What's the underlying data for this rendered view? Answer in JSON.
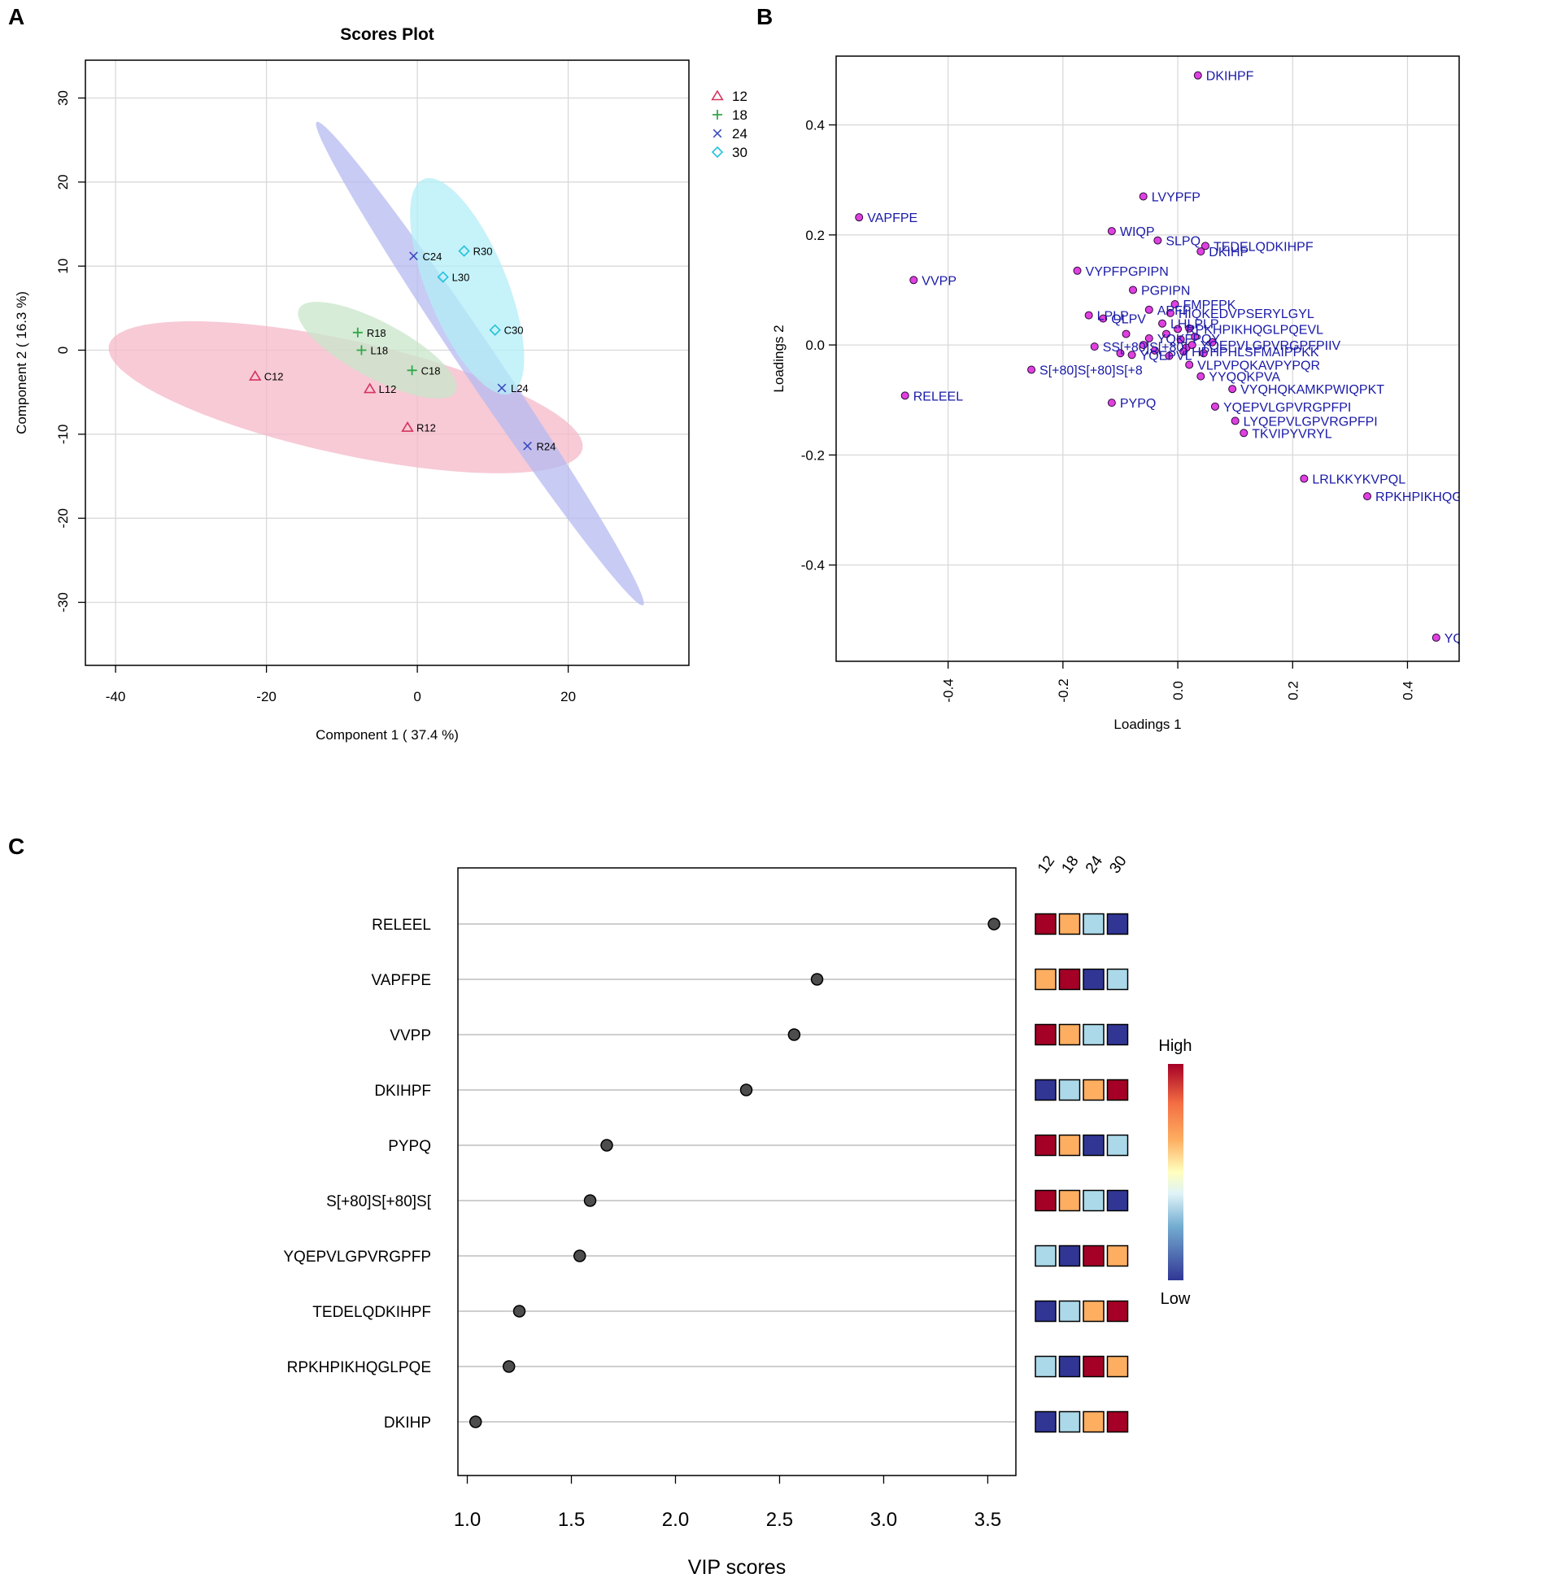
{
  "figure": {
    "panel_a_letter": "A",
    "panel_b_letter": "B",
    "panel_c_letter": "C"
  },
  "colors": {
    "g12": "#d6335e",
    "g18": "#2fa84a",
    "g24": "#3b4cc0",
    "g30": "#22c1dc",
    "ell12": "#f4b8c8",
    "ell18": "#c8e6c9",
    "ell24": "#b5baf0",
    "ell30": "#b3eef7",
    "loading_point": "#e040e0",
    "loading_text": "#1a1aa8",
    "grid": "#d9d9d9",
    "heat_low": "#313695",
    "heat_lowmid": "#abd9e9",
    "heat_mid": "#ffffbf",
    "heat_highmid": "#fdae61",
    "heat_high": "#a50026"
  },
  "chart_data": [
    {
      "id": "scores",
      "type": "scatter",
      "title": "Scores Plot",
      "xlabel": "Component 1 ( 37.4 %)",
      "ylabel": "Component 2 ( 16.3 %)",
      "xlim": [
        -44,
        36
      ],
      "ylim": [
        -37.5,
        34.5
      ],
      "xticks": [
        -40,
        -20,
        0,
        20
      ],
      "yticks": [
        -30,
        -20,
        -10,
        0,
        10,
        20,
        30
      ],
      "grid": true,
      "legend": "top-right",
      "series": [
        {
          "name": "12",
          "marker": "triangle",
          "color_key": "g12",
          "points": [
            {
              "label": "C12",
              "x": -21.5,
              "y": -3.1
            },
            {
              "label": "L12",
              "x": -6.3,
              "y": -4.6
            },
            {
              "label": "R12",
              "x": -1.3,
              "y": -9.2
            }
          ]
        },
        {
          "name": "18",
          "marker": "plus",
          "color_key": "g18",
          "points": [
            {
              "label": "R18",
              "x": -7.9,
              "y": 2.1
            },
            {
              "label": "L18",
              "x": -7.4,
              "y": 0.0
            },
            {
              "label": "C18",
              "x": -0.7,
              "y": -2.4
            }
          ]
        },
        {
          "name": "24",
          "marker": "x",
          "color_key": "g24",
          "points": [
            {
              "label": "C24",
              "x": -0.5,
              "y": 11.2
            },
            {
              "label": "L24",
              "x": 11.2,
              "y": -4.5
            },
            {
              "label": "R24",
              "x": 14.6,
              "y": -11.4
            }
          ]
        },
        {
          "name": "30",
          "marker": "diamond",
          "color_key": "g30",
          "points": [
            {
              "label": "R30",
              "x": 6.2,
              "y": 11.8
            },
            {
              "label": "L30",
              "x": 3.4,
              "y": 8.7
            },
            {
              "label": "C30",
              "x": 10.3,
              "y": 2.4
            }
          ]
        }
      ],
      "ellipses": [
        {
          "group": "12",
          "color_key": "ell12",
          "cx": -9.5,
          "cy": -5.6,
          "rx": 32,
          "ry": 6.8,
          "angle_deg": -11
        },
        {
          "group": "18",
          "color_key": "ell18",
          "cx": -5.3,
          "cy": 0.0,
          "rx": 11.5,
          "ry": 3.4,
          "angle_deg": -25
        },
        {
          "group": "24",
          "color_key": "ell24",
          "cx": 8.3,
          "cy": -1.6,
          "rx": 36,
          "ry": 2.3,
          "angle_deg": -53
        },
        {
          "group": "30",
          "color_key": "ell30",
          "cx": 6.6,
          "cy": 7.6,
          "rx": 14,
          "ry": 5.2,
          "angle_deg": -65
        }
      ]
    },
    {
      "id": "loadings",
      "type": "scatter",
      "title": "",
      "xlabel": "Loadings 1",
      "ylabel": "Loadings 2",
      "xlim": [
        -0.595,
        0.49
      ],
      "ylim": [
        -0.575,
        0.525
      ],
      "xticks": [
        -0.4,
        -0.2,
        0.0,
        0.2,
        0.4
      ],
      "xtick_labels": [
        "-0.4",
        "-0.2",
        "0.0",
        "0.2",
        "0.4"
      ],
      "yticks": [
        -0.4,
        -0.2,
        0.0,
        0.2,
        0.4
      ],
      "ytick_labels": [
        "-0.4",
        "-0.2",
        "0.0",
        "0.2",
        "0.4"
      ],
      "grid": true,
      "points": [
        {
          "label": "DKIHPF",
          "x": 0.035,
          "y": 0.49
        },
        {
          "label": "LVYPFP",
          "x": -0.06,
          "y": 0.27
        },
        {
          "label": "VAPFPE",
          "x": -0.555,
          "y": 0.232
        },
        {
          "label": "WIQP",
          "x": -0.115,
          "y": 0.207
        },
        {
          "label": "SLPQ",
          "x": -0.035,
          "y": 0.19
        },
        {
          "label": "TEDELQDKIHPF",
          "x": 0.048,
          "y": 0.18
        },
        {
          "label": "DKIHP",
          "x": 0.04,
          "y": 0.17
        },
        {
          "label": "VYPFPGPIPN",
          "x": -0.175,
          "y": 0.135
        },
        {
          "label": "VVPP",
          "x": -0.46,
          "y": 0.118
        },
        {
          "label": "PGPIPN",
          "x": -0.078,
          "y": 0.1
        },
        {
          "label": "FMPFPK",
          "x": -0.005,
          "y": 0.074
        },
        {
          "label": "APFP",
          "x": -0.05,
          "y": 0.064
        },
        {
          "label": "HIQKEDVPSERYLGYL",
          "x": -0.013,
          "y": 0.058
        },
        {
          "label": "LPLP",
          "x": -0.155,
          "y": 0.054
        },
        {
          "label": "QLPV",
          "x": -0.13,
          "y": 0.048
        },
        {
          "label": "LHLPLP",
          "x": -0.027,
          "y": 0.039
        },
        {
          "label": "RPKHPIKHQGLPQEVL",
          "x": 0.0,
          "y": 0.029
        },
        {
          "label": "YQKFPQY",
          "x": -0.05,
          "y": 0.012
        },
        {
          "label": "SS[+80]S[+80]",
          "x": -0.145,
          "y": -0.003
        },
        {
          "label": "YQEPVLGPVRGPFPIIV",
          "x": 0.025,
          "y": 0.0
        },
        {
          "label": "YQEPVL",
          "x": -0.08,
          "y": -0.018
        },
        {
          "label": "HPHPHLSFMAIPPKK",
          "x": 0.01,
          "y": -0.012
        },
        {
          "label": "VLPVPQKAVPYPQR",
          "x": 0.02,
          "y": -0.036
        },
        {
          "label": "S[+80]S[+80]S[+8",
          "x": -0.255,
          "y": -0.045
        },
        {
          "label": "YYQQKPVA",
          "x": 0.04,
          "y": -0.057
        },
        {
          "label": "VYQHQKAMKPWIQPKT",
          "x": 0.095,
          "y": -0.08
        },
        {
          "label": "RELEEL",
          "x": -0.475,
          "y": -0.092
        },
        {
          "label": "PYPQ",
          "x": -0.115,
          "y": -0.105
        },
        {
          "label": "YQEPVLGPVRGPFPI",
          "x": 0.065,
          "y": -0.112
        },
        {
          "label": "LYQEPVLGPVRGPFPI",
          "x": 0.1,
          "y": -0.138
        },
        {
          "label": "TKVIPYVRYL",
          "x": 0.115,
          "y": -0.16
        },
        {
          "label": "LRLKKYKVPQL",
          "x": 0.22,
          "y": -0.243
        },
        {
          "label": "RPKHPIKHQGLPQEVL",
          "x": 0.33,
          "y": -0.275
        },
        {
          "label": "YQEPVLGPVRGPFPIIV",
          "x": 0.45,
          "y": -0.532
        }
      ],
      "cluster_points": [
        {
          "x": -0.06,
          "y": 0.0
        },
        {
          "x": -0.04,
          "y": -0.01
        },
        {
          "x": -0.02,
          "y": 0.02
        },
        {
          "x": -0.015,
          "y": -0.02
        },
        {
          "x": 0.005,
          "y": 0.01
        },
        {
          "x": 0.015,
          "y": -0.005
        },
        {
          "x": 0.03,
          "y": 0.015
        },
        {
          "x": 0.045,
          "y": -0.015
        },
        {
          "x": 0.06,
          "y": 0.005
        },
        {
          "x": -0.09,
          "y": 0.02
        },
        {
          "x": -0.1,
          "y": -0.015
        },
        {
          "x": 0.02,
          "y": 0.03
        }
      ]
    },
    {
      "id": "vip",
      "type": "dot",
      "xlabel": "VIP scores",
      "xlim": [
        0.955,
        3.635
      ],
      "xticks": [
        1.0,
        1.5,
        2.0,
        2.5,
        3.0,
        3.5
      ],
      "xtick_labels": [
        "1.0",
        "1.5",
        "2.0",
        "2.5",
        "3.0",
        "3.5"
      ],
      "heat_columns": [
        "12",
        "18",
        "24",
        "30"
      ],
      "legend_high": "High",
      "legend_low": "Low",
      "rows": [
        {
          "label": "RELEEL",
          "value": 3.53,
          "heat": [
            "heat_high",
            "heat_highmid",
            "heat_lowmid",
            "heat_low"
          ]
        },
        {
          "label": "VAPFPE",
          "value": 2.68,
          "heat": [
            "heat_highmid",
            "heat_high",
            "heat_low",
            "heat_lowmid"
          ]
        },
        {
          "label": "VVPP",
          "value": 2.57,
          "heat": [
            "heat_high",
            "heat_highmid",
            "heat_lowmid",
            "heat_low"
          ]
        },
        {
          "label": "DKIHPF",
          "value": 2.34,
          "heat": [
            "heat_low",
            "heat_lowmid",
            "heat_highmid",
            "heat_high"
          ]
        },
        {
          "label": "PYPQ",
          "value": 1.67,
          "heat": [
            "heat_high",
            "heat_highmid",
            "heat_low",
            "heat_lowmid"
          ]
        },
        {
          "label": "S[+80]S[+80]S[",
          "value": 1.59,
          "heat": [
            "heat_high",
            "heat_highmid",
            "heat_lowmid",
            "heat_low"
          ]
        },
        {
          "label": "YQEPVLGPVRGPFP",
          "value": 1.54,
          "heat": [
            "heat_lowmid",
            "heat_low",
            "heat_high",
            "heat_highmid"
          ]
        },
        {
          "label": "TEDELQDKIHPF",
          "value": 1.25,
          "heat": [
            "heat_low",
            "heat_lowmid",
            "heat_highmid",
            "heat_high"
          ]
        },
        {
          "label": "RPKHPIKHQGLPQE",
          "value": 1.2,
          "heat": [
            "heat_lowmid",
            "heat_low",
            "heat_high",
            "heat_highmid"
          ]
        },
        {
          "label": "DKIHP",
          "value": 1.04,
          "heat": [
            "heat_low",
            "heat_lowmid",
            "heat_highmid",
            "heat_high"
          ]
        }
      ]
    }
  ]
}
